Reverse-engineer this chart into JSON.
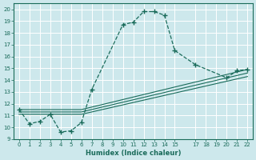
{
  "xlabel": "Humidex (Indice chaleur)",
  "bg_color": "#cde8ec",
  "grid_color": "#ffffff",
  "line_color": "#1a6b5a",
  "xlim": [
    -0.5,
    22.5
  ],
  "ylim": [
    9,
    20.5
  ],
  "xticks": [
    0,
    1,
    2,
    3,
    4,
    5,
    6,
    7,
    8,
    9,
    10,
    11,
    12,
    13,
    14,
    15,
    17,
    18,
    19,
    20,
    21,
    22
  ],
  "yticks": [
    9,
    10,
    11,
    12,
    13,
    14,
    15,
    16,
    17,
    18,
    19,
    20
  ],
  "line1_x": [
    0,
    1,
    2,
    3,
    4,
    5,
    6,
    7,
    10,
    11,
    12,
    13,
    14,
    15,
    17,
    20,
    21,
    22
  ],
  "line1_y": [
    11.5,
    10.3,
    10.5,
    11.1,
    9.6,
    9.7,
    10.4,
    13.2,
    18.7,
    18.9,
    19.8,
    19.8,
    19.5,
    16.5,
    15.3,
    14.2,
    14.8,
    14.9
  ],
  "line2_x": [
    0,
    6,
    22
  ],
  "line2_y": [
    11.1,
    11.1,
    14.3
  ],
  "line3_x": [
    0,
    6,
    22
  ],
  "line3_y": [
    11.3,
    11.3,
    14.6
  ],
  "line4_x": [
    0,
    6,
    22
  ],
  "line4_y": [
    11.5,
    11.5,
    14.9
  ]
}
